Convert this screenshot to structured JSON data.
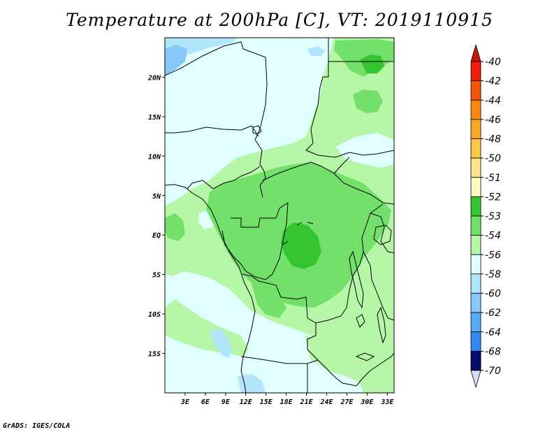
{
  "title": "Temperature at 200hPa [C], VT: 2019110915",
  "credit": "GrADS: IGES/COLA",
  "map": {
    "lon_range": [
      0,
      34
    ],
    "lat_range": [
      -20,
      25
    ],
    "x_ticks": [
      {
        "value": 3,
        "label": "3E"
      },
      {
        "value": 6,
        "label": "6E"
      },
      {
        "value": 9,
        "label": "9E"
      },
      {
        "value": 12,
        "label": "12E"
      },
      {
        "value": 15,
        "label": "15E"
      },
      {
        "value": 18,
        "label": "18E"
      },
      {
        "value": 21,
        "label": "21E"
      },
      {
        "value": 24,
        "label": "24E"
      },
      {
        "value": 27,
        "label": "27E"
      },
      {
        "value": 30,
        "label": "30E"
      },
      {
        "value": 33,
        "label": "33E"
      }
    ],
    "y_ticks": [
      {
        "value": 20,
        "label": "20N"
      },
      {
        "value": 15,
        "label": "15N"
      },
      {
        "value": 10,
        "label": "10N"
      },
      {
        "value": 5,
        "label": "5N"
      },
      {
        "value": 0,
        "label": "EQ"
      },
      {
        "value": -5,
        "label": "5S"
      },
      {
        "value": -10,
        "label": "10S"
      },
      {
        "value": -15,
        "label": "15S"
      }
    ],
    "background_color": "#e0fffe",
    "border_color": "#000000"
  },
  "colorbar": {
    "levels": [
      {
        "label": "-40",
        "color": "#f01c0c"
      },
      {
        "label": "-42",
        "color": "#f5550a"
      },
      {
        "label": "-44",
        "color": "#f98a10"
      },
      {
        "label": "-46",
        "color": "#f9a82a"
      },
      {
        "label": "-48",
        "color": "#fbc848"
      },
      {
        "label": "-50",
        "color": "#fbe48a"
      },
      {
        "label": "-51",
        "color": "#fdfbbf"
      },
      {
        "label": "-52",
        "color": "#34c531"
      },
      {
        "label": "-53",
        "color": "#73e06b"
      },
      {
        "label": "-54",
        "color": "#b5f7a6"
      },
      {
        "label": "-56",
        "color": "#e0fffe"
      },
      {
        "label": "-58",
        "color": "#b1e5fb"
      },
      {
        "label": "-60",
        "color": "#87c8f9"
      },
      {
        "label": "-62",
        "color": "#5aa9f4"
      },
      {
        "label": "-64",
        "color": "#3388ef"
      },
      {
        "label": "-68",
        "color": "#1c62dc"
      },
      {
        "label": "-70",
        "color": "#0b3bb2"
      }
    ],
    "top_arrow_color": "#c8160a",
    "bottom_arrow_color": "#dcdcf8",
    "bottom_segment_color": "#060b6e"
  },
  "fields": {
    "colors": {
      "c52": "#34c531",
      "c53": "#73e06b",
      "c54": "#b5f7a6",
      "c56": "#e0fffe",
      "c58": "#b1e5fb",
      "c60": "#87c8f9"
    }
  }
}
